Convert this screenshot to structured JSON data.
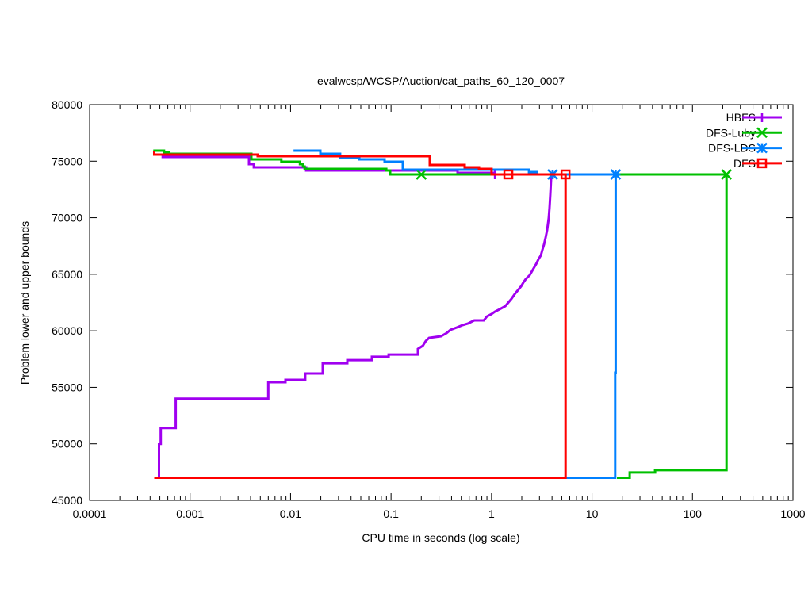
{
  "chart_data": {
    "type": "line",
    "title": "evalwcsp/WCSP/Auction/cat_paths_60_120_0007",
    "xlabel": "CPU time in seconds (log scale)",
    "ylabel": "Problem lower and upper bounds",
    "xscale": "log",
    "xlim": [
      0.0001,
      1000
    ],
    "ylim": [
      45000,
      80000
    ],
    "xticks": [
      {
        "v": 0.0001,
        "label": "0.0001"
      },
      {
        "v": 0.001,
        "label": "0.001"
      },
      {
        "v": 0.01,
        "label": "0.01"
      },
      {
        "v": 0.1,
        "label": "0.1"
      },
      {
        "v": 1,
        "label": "1"
      },
      {
        "v": 10,
        "label": "10"
      },
      {
        "v": 100,
        "label": "100"
      },
      {
        "v": 1000,
        "label": "1000"
      }
    ],
    "yticks": [
      {
        "v": 45000,
        "label": "45000"
      },
      {
        "v": 50000,
        "label": "50000"
      },
      {
        "v": 55000,
        "label": "55000"
      },
      {
        "v": 60000,
        "label": "60000"
      },
      {
        "v": 65000,
        "label": "65000"
      },
      {
        "v": 70000,
        "label": "70000"
      },
      {
        "v": 75000,
        "label": "75000"
      },
      {
        "v": 80000,
        "label": "80000"
      }
    ],
    "grid": false,
    "legend_position": "top-right",
    "series": [
      {
        "name": "HBFS",
        "color": "#a000f0",
        "marker": "plus",
        "lines": [
          [
            [
              0.00049,
              47000
            ],
            [
              0.00049,
              50000
            ],
            [
              0.00051,
              50000
            ],
            [
              0.00051,
              51400
            ],
            [
              0.00072,
              51400
            ],
            [
              0.00072,
              54000
            ],
            [
              0.006,
              54000
            ],
            [
              0.006,
              55450
            ],
            [
              0.0089,
              55450
            ],
            [
              0.0089,
              55660
            ],
            [
              0.014,
              55660
            ],
            [
              0.014,
              56220
            ],
            [
              0.0209,
              56220
            ],
            [
              0.0209,
              57130
            ],
            [
              0.0367,
              57130
            ],
            [
              0.0367,
              57410
            ],
            [
              0.0645,
              57410
            ],
            [
              0.0645,
              57700
            ],
            [
              0.0946,
              57700
            ],
            [
              0.0946,
              57900
            ],
            [
              0.185,
              57900
            ],
            [
              0.185,
              58400
            ],
            [
              0.207,
              58680
            ],
            [
              0.222,
              59100
            ],
            [
              0.239,
              59380
            ],
            [
              0.314,
              59520
            ],
            [
              0.357,
              59800
            ],
            [
              0.39,
              60080
            ],
            [
              0.451,
              60290
            ],
            [
              0.513,
              60500
            ],
            [
              0.582,
              60640
            ],
            [
              0.673,
              60920
            ],
            [
              0.837,
              60920
            ],
            [
              0.9,
              61270
            ],
            [
              1.0,
              61480
            ],
            [
              1.08,
              61690
            ],
            [
              1.2,
              61900
            ],
            [
              1.37,
              62180
            ],
            [
              1.44,
              62400
            ],
            [
              1.58,
              62820
            ],
            [
              1.7,
              63240
            ],
            [
              1.83,
              63590
            ],
            [
              1.97,
              63940
            ],
            [
              2.08,
              64290
            ],
            [
              2.19,
              64570
            ],
            [
              2.4,
              64920
            ],
            [
              2.58,
              65410
            ],
            [
              2.78,
              65900
            ],
            [
              2.93,
              66320
            ],
            [
              3.1,
              66670
            ],
            [
              3.21,
              67160
            ],
            [
              3.33,
              67650
            ],
            [
              3.45,
              68220
            ],
            [
              3.58,
              68920
            ],
            [
              3.71,
              69970
            ],
            [
              3.78,
              70880
            ],
            [
              3.85,
              72070
            ],
            [
              3.92,
              73470
            ],
            [
              4.06,
              73830
            ]
          ],
          [
            [
              0.00052,
              75370
            ],
            [
              0.00386,
              75370
            ],
            [
              0.00386,
              74740
            ],
            [
              0.00431,
              74740
            ],
            [
              0.00431,
              74460
            ],
            [
              0.0143,
              74460
            ],
            [
              0.0143,
              74180
            ],
            [
              0.459,
              74180
            ],
            [
              0.459,
              73970
            ],
            [
              1.08,
              73970
            ],
            [
              1.08,
              73830
            ],
            [
              4.06,
              73830
            ]
          ]
        ],
        "markers": [
          [
            1.08,
            73830
          ],
          [
            4.06,
            73830
          ]
        ]
      },
      {
        "name": "DFS-Luby",
        "color": "#00c000",
        "marker": "x",
        "lines": [
          [
            [
              0.00043,
              75930
            ],
            [
              0.00055,
              75930
            ],
            [
              0.00055,
              75790
            ],
            [
              0.00062,
              75790
            ],
            [
              0.00062,
              75650
            ],
            [
              0.00407,
              75650
            ],
            [
              0.00407,
              75160
            ],
            [
              0.0081,
              75160
            ],
            [
              0.0081,
              74950
            ],
            [
              0.0124,
              74950
            ],
            [
              0.0124,
              74740
            ],
            [
              0.0133,
              74740
            ],
            [
              0.0133,
              74530
            ],
            [
              0.0138,
              74530
            ],
            [
              0.0138,
              74320
            ],
            [
              0.0896,
              74320
            ],
            [
              0.0896,
              74180
            ],
            [
              0.098,
              74180
            ],
            [
              0.098,
              73830
            ],
            [
              218,
              73830
            ],
            [
              218,
              47670
            ],
            [
              42.4,
              47670
            ],
            [
              42.4,
              47460
            ],
            [
              23.7,
              47460
            ],
            [
              23.7,
              47000
            ],
            [
              17.7,
              47000
            ]
          ]
        ],
        "markers": [
          [
            0.2,
            73830
          ],
          [
            218,
            73830
          ]
        ]
      },
      {
        "name": "DFS-LDS",
        "color": "#0080ff",
        "marker": "star",
        "lines": [
          [
            [
              0.0107,
              75930
            ],
            [
              0.0198,
              75930
            ],
            [
              0.0198,
              75650
            ],
            [
              0.0311,
              75650
            ],
            [
              0.0311,
              75300
            ],
            [
              0.0483,
              75300
            ],
            [
              0.0483,
              75160
            ],
            [
              0.0863,
              75160
            ],
            [
              0.0863,
              74950
            ],
            [
              0.131,
              74950
            ],
            [
              0.131,
              74250
            ],
            [
              2.36,
              74250
            ],
            [
              2.36,
              74040
            ],
            [
              2.8,
              74040
            ],
            [
              2.8,
              73830
            ],
            [
              17.2,
              73830
            ],
            [
              17.2,
              56290
            ],
            [
              17.0,
              56290
            ],
            [
              17.0,
              47000
            ],
            [
              5.45,
              47000
            ]
          ]
        ],
        "markers": [
          [
            4.06,
            73830
          ],
          [
            17.2,
            73830
          ]
        ]
      },
      {
        "name": "DFS",
        "color": "#ff0000",
        "marker": "square",
        "lines": [
          [
            [
              0.00044,
              75930
            ],
            [
              0.00044,
              75580
            ],
            [
              0.00471,
              75580
            ],
            [
              0.00471,
              75440
            ],
            [
              0.243,
              75440
            ],
            [
              0.243,
              74670
            ],
            [
              0.541,
              74670
            ],
            [
              0.541,
              74460
            ],
            [
              0.75,
              74460
            ],
            [
              0.75,
              74320
            ],
            [
              1.0,
              74320
            ],
            [
              1.0,
              73830
            ],
            [
              5.45,
              73830
            ],
            [
              5.45,
              47000
            ],
            [
              0.00044,
              47000
            ]
          ]
        ],
        "markers": [
          [
            1.47,
            73830
          ],
          [
            5.45,
            73830
          ]
        ]
      }
    ]
  }
}
